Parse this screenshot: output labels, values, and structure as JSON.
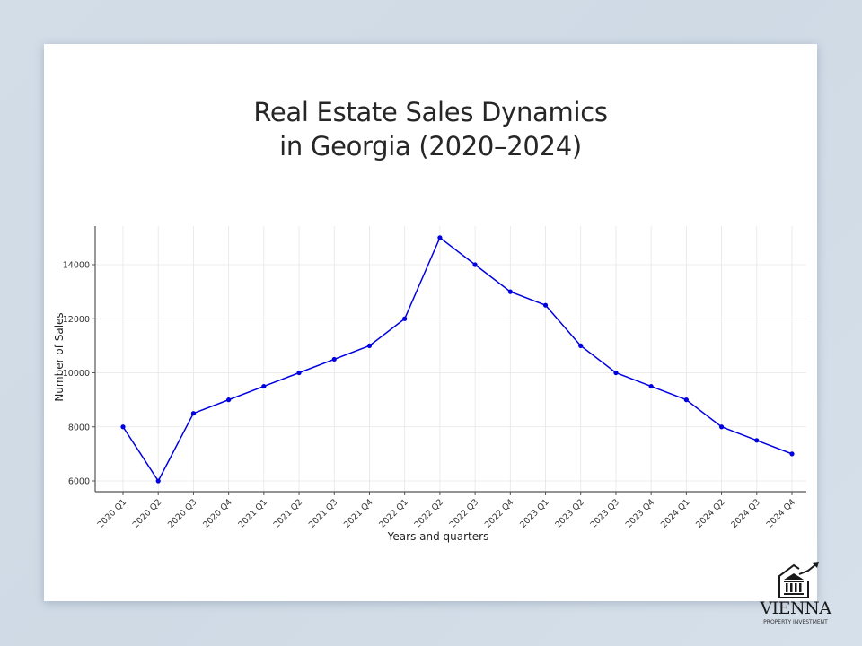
{
  "title_lines": [
    "Real Estate Sales Dynamics",
    "in Georgia (2020–2024)"
  ],
  "chart_data": {
    "type": "line",
    "title": "Real Estate Sales Dynamics in Georgia (2020–2024)",
    "xlabel": "Years and quarters",
    "ylabel": "Number of Sales",
    "categories": [
      "2020 Q1",
      "2020 Q2",
      "2020 Q3",
      "2020 Q4",
      "2021 Q1",
      "2021 Q2",
      "2021 Q3",
      "2021 Q4",
      "2022 Q1",
      "2022 Q2",
      "2022 Q3",
      "2022 Q4",
      "2023 Q1",
      "2023 Q2",
      "2023 Q3",
      "2023 Q4",
      "2024 Q1",
      "2024 Q2",
      "2024 Q3",
      "2024 Q4"
    ],
    "series": [
      {
        "name": "Number of Sales",
        "color": "#0000e0",
        "values": [
          8000,
          6000,
          8500,
          9000,
          9500,
          10000,
          10500,
          11000,
          12000,
          15000,
          14000,
          13000,
          12500,
          11000,
          10000,
          9500,
          9000,
          8000,
          7500,
          7000
        ]
      }
    ],
    "yticks": [
      6000,
      8000,
      10000,
      12000,
      14000
    ],
    "ylim": [
      5600,
      15500
    ],
    "grid": true,
    "legend": "none",
    "marker": "circle"
  },
  "logo": {
    "name": "VIENNA",
    "subtitle": "PROPERTY INVESTMENT"
  }
}
